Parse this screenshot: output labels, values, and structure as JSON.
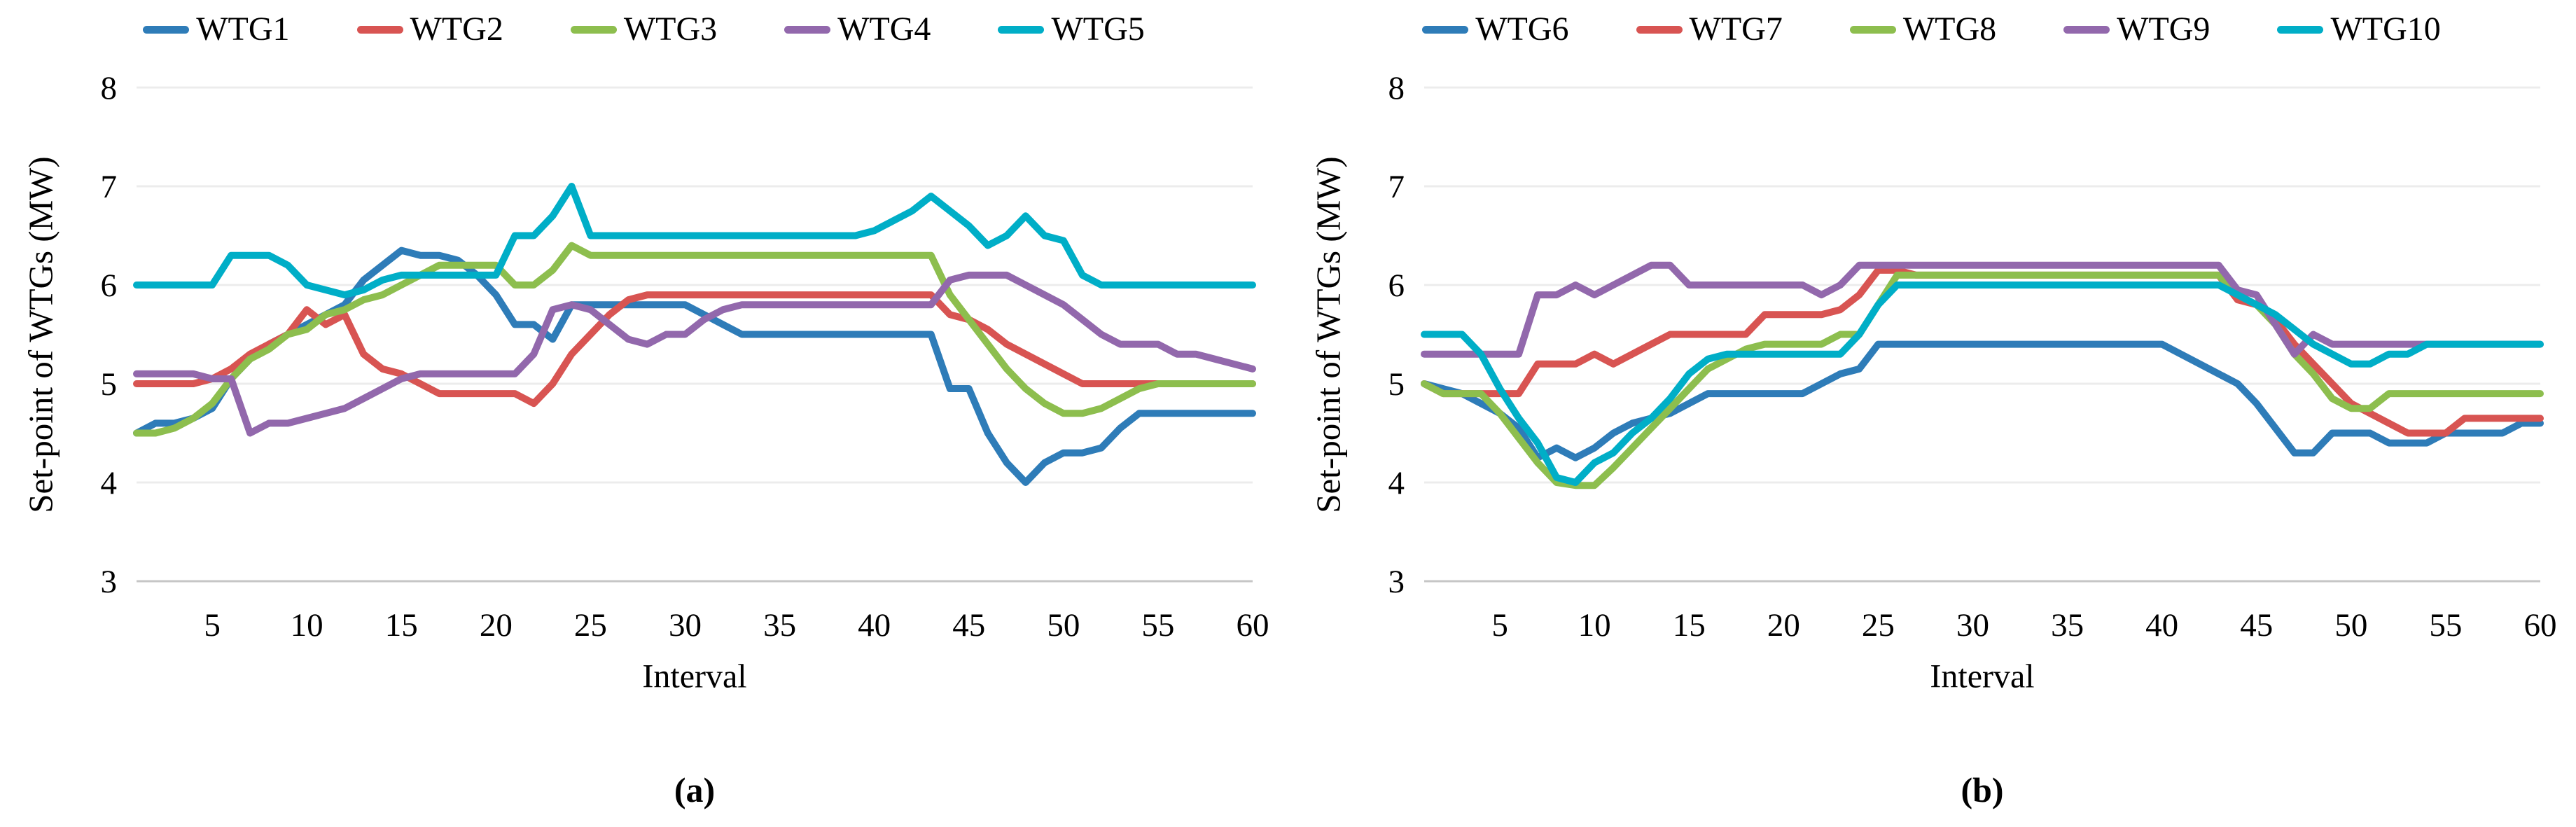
{
  "panels": [
    {
      "caption": "(a)",
      "xlabel": "Interval",
      "ylabel": "Set-point of WTGs (MW)"
    },
    {
      "caption": "(b)",
      "xlabel": "Interval",
      "ylabel": "Set-point of WTGs (MW)"
    }
  ],
  "chart_data": [
    {
      "type": "line",
      "title": "",
      "xlabel": "Interval",
      "ylabel": "Set-point of WTGs (MW)",
      "xlim": [
        1,
        60
      ],
      "ylim": [
        3,
        8
      ],
      "x_start": 1,
      "x_step": 1,
      "xticks": [
        5,
        10,
        15,
        20,
        25,
        30,
        35,
        40,
        45,
        50,
        55,
        60
      ],
      "yticks": [
        3,
        4,
        5,
        6,
        7,
        8
      ],
      "grid": "horizontal",
      "legend_position": "top",
      "series": [
        {
          "name": "WTG1",
          "color": "#2e7cb8",
          "values": [
            4.5,
            4.6,
            4.6,
            4.65,
            4.75,
            5.05,
            5.25,
            5.4,
            5.5,
            5.6,
            5.7,
            5.8,
            6.05,
            6.2,
            6.35,
            6.3,
            6.3,
            6.25,
            6.1,
            5.9,
            5.6,
            5.6,
            5.45,
            5.8,
            5.8,
            5.8,
            5.8,
            5.8,
            5.8,
            5.8,
            5.7,
            5.6,
            5.5,
            5.5,
            5.5,
            5.5,
            5.5,
            5.5,
            5.5,
            5.5,
            5.5,
            5.5,
            5.5,
            4.95,
            4.95,
            4.5,
            4.2,
            4.0,
            4.2,
            4.3,
            4.3,
            4.35,
            4.55,
            4.7,
            4.7,
            4.7,
            4.7,
            4.7,
            4.7,
            4.7
          ]
        },
        {
          "name": "WTG2",
          "color": "#d85452",
          "values": [
            5.0,
            5.0,
            5.0,
            5.0,
            5.05,
            5.15,
            5.3,
            5.4,
            5.5,
            5.75,
            5.6,
            5.7,
            5.3,
            5.15,
            5.1,
            5.0,
            4.9,
            4.9,
            4.9,
            4.9,
            4.9,
            4.8,
            5.0,
            5.3,
            5.5,
            5.7,
            5.85,
            5.9,
            5.9,
            5.9,
            5.9,
            5.9,
            5.9,
            5.9,
            5.9,
            5.9,
            5.9,
            5.9,
            5.9,
            5.9,
            5.9,
            5.9,
            5.9,
            5.7,
            5.65,
            5.55,
            5.4,
            5.3,
            5.2,
            5.1,
            5.0,
            5.0,
            5.0,
            5.0,
            5.0,
            5.0,
            5.0,
            5.0,
            5.0,
            5.0
          ]
        },
        {
          "name": "WTG3",
          "color": "#8dbe4e",
          "values": [
            4.5,
            4.5,
            4.55,
            4.65,
            4.8,
            5.05,
            5.25,
            5.35,
            5.5,
            5.55,
            5.7,
            5.75,
            5.85,
            5.9,
            6.0,
            6.1,
            6.2,
            6.2,
            6.2,
            6.2,
            6.0,
            6.0,
            6.15,
            6.4,
            6.3,
            6.3,
            6.3,
            6.3,
            6.3,
            6.3,
            6.3,
            6.3,
            6.3,
            6.3,
            6.3,
            6.3,
            6.3,
            6.3,
            6.3,
            6.3,
            6.3,
            6.3,
            6.3,
            5.9,
            5.65,
            5.4,
            5.15,
            4.95,
            4.8,
            4.7,
            4.7,
            4.75,
            4.85,
            4.95,
            5.0,
            5.0,
            5.0,
            5.0,
            5.0,
            5.0
          ]
        },
        {
          "name": "WTG4",
          "color": "#9268ac",
          "values": [
            5.1,
            5.1,
            5.1,
            5.1,
            5.05,
            5.05,
            4.5,
            4.6,
            4.6,
            4.65,
            4.7,
            4.75,
            4.85,
            4.95,
            5.05,
            5.1,
            5.1,
            5.1,
            5.1,
            5.1,
            5.1,
            5.3,
            5.75,
            5.8,
            5.75,
            5.6,
            5.45,
            5.4,
            5.5,
            5.5,
            5.65,
            5.75,
            5.8,
            5.8,
            5.8,
            5.8,
            5.8,
            5.8,
            5.8,
            5.8,
            5.8,
            5.8,
            5.8,
            6.05,
            6.1,
            6.1,
            6.1,
            6.0,
            5.9,
            5.8,
            5.65,
            5.5,
            5.4,
            5.4,
            5.4,
            5.3,
            5.3,
            5.25,
            5.2,
            5.15
          ]
        },
        {
          "name": "WTG5",
          "color": "#00aec7",
          "values": [
            6.0,
            6.0,
            6.0,
            6.0,
            6.0,
            6.3,
            6.3,
            6.3,
            6.2,
            6.0,
            5.95,
            5.9,
            5.95,
            6.05,
            6.1,
            6.1,
            6.1,
            6.1,
            6.1,
            6.1,
            6.5,
            6.5,
            6.7,
            7.0,
            6.5,
            6.5,
            6.5,
            6.5,
            6.5,
            6.5,
            6.5,
            6.5,
            6.5,
            6.5,
            6.5,
            6.5,
            6.5,
            6.5,
            6.5,
            6.55,
            6.65,
            6.75,
            6.9,
            6.75,
            6.6,
            6.4,
            6.5,
            6.7,
            6.5,
            6.45,
            6.1,
            6.0,
            6.0,
            6.0,
            6.0,
            6.0,
            6.0,
            6.0,
            6.0,
            6.0
          ]
        }
      ]
    },
    {
      "type": "line",
      "title": "",
      "xlabel": "Interval",
      "ylabel": "Set-point of WTGs (MW)",
      "xlim": [
        1,
        60
      ],
      "ylim": [
        3,
        8
      ],
      "x_start": 1,
      "x_step": 1,
      "xticks": [
        5,
        10,
        15,
        20,
        25,
        30,
        35,
        40,
        45,
        50,
        55,
        60
      ],
      "yticks": [
        3,
        4,
        5,
        6,
        7,
        8
      ],
      "grid": "horizontal",
      "legend_position": "top",
      "series": [
        {
          "name": "WTG6",
          "color": "#2e7cb8",
          "values": [
            5.0,
            4.95,
            4.9,
            4.8,
            4.7,
            4.55,
            4.25,
            4.35,
            4.25,
            4.35,
            4.5,
            4.6,
            4.65,
            4.7,
            4.8,
            4.9,
            4.9,
            4.9,
            4.9,
            4.9,
            4.9,
            5.0,
            5.1,
            5.15,
            5.4,
            5.4,
            5.4,
            5.4,
            5.4,
            5.4,
            5.4,
            5.4,
            5.4,
            5.4,
            5.4,
            5.4,
            5.4,
            5.4,
            5.4,
            5.4,
            5.3,
            5.2,
            5.1,
            5.0,
            4.8,
            4.55,
            4.3,
            4.3,
            4.5,
            4.5,
            4.5,
            4.4,
            4.4,
            4.4,
            4.5,
            4.5,
            4.5,
            4.5,
            4.6,
            4.6
          ]
        },
        {
          "name": "WTG7",
          "color": "#d85452",
          "values": [
            5.0,
            4.9,
            4.9,
            4.9,
            4.9,
            4.9,
            5.2,
            5.2,
            5.2,
            5.3,
            5.2,
            5.3,
            5.4,
            5.5,
            5.5,
            5.5,
            5.5,
            5.5,
            5.7,
            5.7,
            5.7,
            5.7,
            5.75,
            5.9,
            6.15,
            6.15,
            6.1,
            6.1,
            6.1,
            6.1,
            6.1,
            6.1,
            6.1,
            6.1,
            6.1,
            6.1,
            6.1,
            6.1,
            6.1,
            6.1,
            6.1,
            6.1,
            6.1,
            5.85,
            5.8,
            5.65,
            5.4,
            5.2,
            5.0,
            4.8,
            4.7,
            4.6,
            4.5,
            4.5,
            4.5,
            4.65,
            4.65,
            4.65,
            4.65,
            4.65
          ]
        },
        {
          "name": "WTG8",
          "color": "#8dbe4e",
          "values": [
            5.0,
            4.9,
            4.9,
            4.9,
            4.7,
            4.45,
            4.2,
            4.0,
            3.97,
            3.97,
            4.15,
            4.35,
            4.55,
            4.75,
            4.95,
            5.15,
            5.25,
            5.35,
            5.4,
            5.4,
            5.4,
            5.4,
            5.5,
            5.5,
            5.8,
            6.1,
            6.1,
            6.1,
            6.1,
            6.1,
            6.1,
            6.1,
            6.1,
            6.1,
            6.1,
            6.1,
            6.1,
            6.1,
            6.1,
            6.1,
            6.1,
            6.1,
            6.1,
            5.9,
            5.8,
            5.6,
            5.3,
            5.1,
            4.85,
            4.75,
            4.75,
            4.9,
            4.9,
            4.9,
            4.9,
            4.9,
            4.9,
            4.9,
            4.9,
            4.9
          ]
        },
        {
          "name": "WTG9",
          "color": "#9268ac",
          "values": [
            5.3,
            5.3,
            5.3,
            5.3,
            5.3,
            5.3,
            5.9,
            5.9,
            6.0,
            5.9,
            6.0,
            6.1,
            6.2,
            6.2,
            6.0,
            6.0,
            6.0,
            6.0,
            6.0,
            6.0,
            6.0,
            5.9,
            6.0,
            6.2,
            6.2,
            6.2,
            6.2,
            6.2,
            6.2,
            6.2,
            6.2,
            6.2,
            6.2,
            6.2,
            6.2,
            6.2,
            6.2,
            6.2,
            6.2,
            6.2,
            6.2,
            6.2,
            6.2,
            5.95,
            5.9,
            5.6,
            5.3,
            5.5,
            5.4,
            5.4,
            5.4,
            5.4,
            5.4,
            5.4,
            5.4,
            5.4,
            5.4,
            5.4,
            5.4,
            5.4
          ]
        },
        {
          "name": "WTG10",
          "color": "#00aec7",
          "values": [
            5.5,
            5.5,
            5.5,
            5.3,
            4.95,
            4.65,
            4.4,
            4.05,
            4.0,
            4.2,
            4.3,
            4.5,
            4.65,
            4.85,
            5.1,
            5.25,
            5.3,
            5.3,
            5.3,
            5.3,
            5.3,
            5.3,
            5.3,
            5.5,
            5.8,
            6.0,
            6.0,
            6.0,
            6.0,
            6.0,
            6.0,
            6.0,
            6.0,
            6.0,
            6.0,
            6.0,
            6.0,
            6.0,
            6.0,
            6.0,
            6.0,
            6.0,
            6.0,
            5.9,
            5.8,
            5.7,
            5.55,
            5.4,
            5.3,
            5.2,
            5.2,
            5.3,
            5.3,
            5.4,
            5.4,
            5.4,
            5.4,
            5.4,
            5.4,
            5.4
          ]
        }
      ]
    }
  ]
}
